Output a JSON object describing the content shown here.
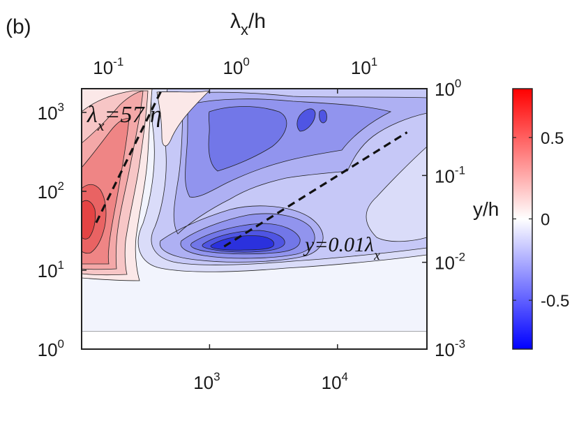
{
  "panel_label": "(b)",
  "chart_data": {
    "type": "contour",
    "x_bottom": {
      "scale": "log",
      "range": [
        100,
        50000
      ],
      "ticks": [
        {
          "value": 1000,
          "base": "10",
          "exp": "3"
        },
        {
          "value": 10000,
          "base": "10",
          "exp": "4"
        }
      ]
    },
    "x_top": {
      "label_base": "λ",
      "label_sub": "x",
      "label_tail": "/h",
      "scale": "log",
      "ticks": [
        {
          "value": 0.1,
          "base": "10",
          "exp": "-1"
        },
        {
          "value": 1,
          "base": "10",
          "exp": "0"
        },
        {
          "value": 10,
          "base": "10",
          "exp": "1"
        }
      ]
    },
    "y_left": {
      "scale": "log",
      "range": [
        1,
        2000
      ],
      "ticks": [
        {
          "value": 1,
          "base": "10",
          "exp": "0"
        },
        {
          "value": 10,
          "base": "10",
          "exp": "1"
        },
        {
          "value": 100,
          "base": "10",
          "exp": "2"
        },
        {
          "value": 1000,
          "base": "10",
          "exp": "3"
        }
      ]
    },
    "y_right": {
      "label": "y/h",
      "scale": "log",
      "ticks": [
        {
          "value": 0.001,
          "base": "10",
          "exp": "-3"
        },
        {
          "value": 0.01,
          "base": "10",
          "exp": "-2"
        },
        {
          "value": 0.1,
          "base": "10",
          "exp": "-1"
        },
        {
          "value": 1,
          "base": "10",
          "exp": "0"
        }
      ]
    },
    "colorbar": {
      "range": [
        -0.8,
        0.8
      ],
      "ticks": [
        {
          "value": 0.5,
          "label": "0.5"
        },
        {
          "value": 0,
          "label": "0"
        },
        {
          "value": -0.5,
          "label": "-0.5"
        }
      ],
      "colors": [
        "#0000ff",
        "#ffffff",
        "#ff0000"
      ]
    },
    "annotations": [
      {
        "text_base": "λ",
        "text_sub": "x",
        "text_tail": "=57 η"
      },
      {
        "text_base": "y=0.01λ",
        "text_sub": "x"
      }
    ],
    "reference_lines": [
      {
        "name": "lambda_x = 57 eta",
        "points": [
          [
            130,
            40
          ],
          [
            420,
            1900
          ]
        ]
      },
      {
        "name": "y = 0.01 lambda_x",
        "points": [
          [
            1300,
            20
          ],
          [
            35000,
            560
          ]
        ]
      }
    ],
    "features": {
      "positive_peak": {
        "x": 140,
        "y": 70,
        "value": 0.55
      },
      "negative_peak": {
        "x": 2000,
        "y": 22,
        "value": -0.7
      },
      "secondary_negative": {
        "x": 2500,
        "y": 1000,
        "value": -0.45
      }
    }
  }
}
